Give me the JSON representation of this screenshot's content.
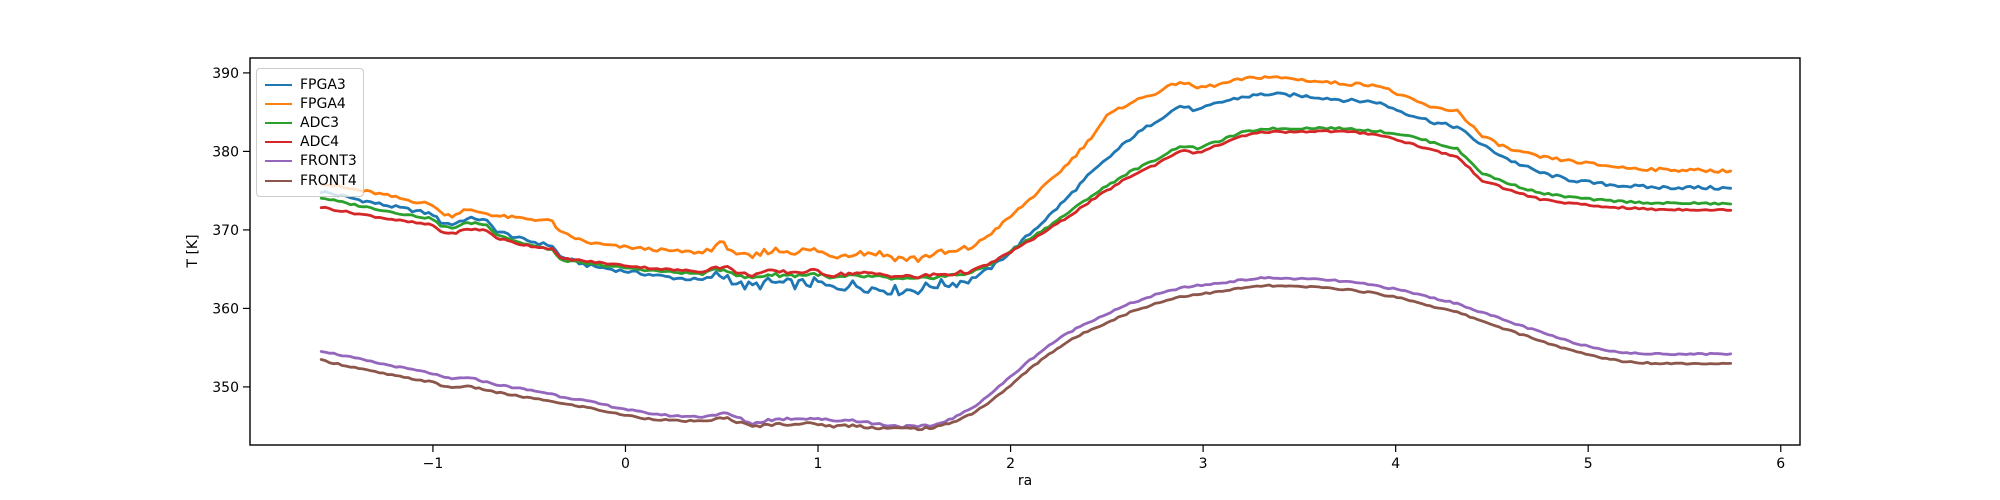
{
  "chart_data": {
    "type": "line",
    "title": "",
    "xlabel": "ra",
    "ylabel": "T [K]",
    "xlim": [
      -1.95,
      6.1
    ],
    "ylim": [
      342.6,
      391.9
    ],
    "xticks": [
      -1,
      0,
      1,
      2,
      3,
      4,
      5,
      6
    ],
    "yticks": [
      350,
      360,
      370,
      380,
      390
    ],
    "grid": false,
    "legend_position": "upper left",
    "x": [
      -1.58,
      -1.45,
      -1.3,
      -1.15,
      -1.0,
      -0.96,
      -0.9,
      -0.84,
      -0.78,
      -0.72,
      -0.67,
      -0.55,
      -0.45,
      -0.38,
      -0.34,
      -0.2,
      -0.05,
      0.1,
      0.25,
      0.4,
      0.47,
      0.53,
      0.6,
      0.66,
      0.74,
      0.88,
      1.0,
      1.06,
      1.18,
      1.3,
      1.42,
      1.52,
      1.6,
      1.7,
      1.8,
      1.9,
      2.0,
      2.1,
      2.2,
      2.3,
      2.4,
      2.5,
      2.62,
      2.75,
      2.88,
      2.97,
      3.08,
      3.2,
      3.32,
      3.45,
      3.6,
      3.75,
      3.9,
      4.05,
      4.2,
      4.32,
      4.45,
      4.6,
      4.75,
      4.9,
      5.05,
      5.2,
      5.35,
      5.55,
      5.74
    ],
    "series": [
      {
        "name": "FPGA3",
        "color": "#1f77b4",
        "noise": 0.22,
        "noise_boost": [
          0.45,
          1.78,
          3.0
        ],
        "values": [
          374.9,
          374.2,
          373.4,
          372.7,
          372.0,
          371.0,
          370.7,
          371.3,
          371.5,
          371.1,
          369.9,
          368.9,
          368.3,
          368.0,
          366.6,
          365.5,
          364.9,
          364.4,
          363.9,
          363.6,
          364.2,
          364.1,
          362.9,
          362.8,
          363.3,
          363.1,
          363.3,
          362.6,
          363.0,
          362.5,
          362.3,
          362.4,
          363.0,
          363.2,
          363.8,
          365.2,
          367.2,
          369.5,
          371.8,
          374.2,
          376.8,
          379.0,
          381.6,
          383.8,
          385.8,
          385.2,
          386.2,
          386.9,
          387.3,
          387.2,
          386.9,
          386.5,
          386.3,
          384.9,
          383.7,
          383.1,
          380.8,
          378.8,
          377.3,
          376.4,
          375.9,
          375.6,
          375.4,
          375.4,
          375.3
        ]
      },
      {
        "name": "FPGA4",
        "color": "#ff7f0e",
        "noise": 0.2,
        "noise_boost": [
          0.4,
          1.78,
          2.5
        ],
        "values": [
          376.0,
          375.3,
          374.7,
          373.9,
          373.2,
          372.2,
          371.8,
          372.5,
          372.4,
          372.1,
          371.8,
          371.5,
          371.3,
          371.1,
          369.7,
          368.4,
          367.9,
          367.6,
          367.3,
          367.1,
          368.1,
          368.0,
          366.6,
          366.4,
          367.4,
          367.3,
          367.4,
          366.6,
          367.1,
          367.1,
          366.4,
          366.3,
          367.0,
          367.1,
          367.8,
          369.6,
          371.7,
          373.9,
          376.1,
          378.5,
          381.2,
          384.5,
          386.2,
          387.4,
          388.9,
          388.1,
          388.5,
          389.2,
          389.5,
          389.3,
          388.9,
          388.6,
          388.5,
          386.9,
          385.5,
          385.2,
          381.9,
          380.2,
          379.3,
          378.8,
          378.3,
          377.9,
          377.7,
          377.6,
          377.5
        ]
      },
      {
        "name": "ADC3",
        "color": "#2ca02c",
        "noise": 0.12,
        "noise_boost": [
          0.45,
          1.78,
          2.0
        ],
        "values": [
          374.1,
          373.4,
          372.7,
          372.0,
          371.4,
          370.5,
          370.2,
          370.8,
          370.9,
          370.6,
          369.5,
          368.4,
          367.8,
          367.5,
          366.2,
          365.7,
          365.3,
          364.9,
          364.6,
          364.4,
          365.0,
          364.9,
          364.0,
          363.9,
          364.3,
          364.2,
          364.4,
          363.8,
          364.1,
          364.0,
          363.7,
          363.7,
          364.0,
          364.2,
          364.6,
          365.7,
          367.3,
          368.9,
          370.5,
          372.2,
          374.0,
          375.6,
          377.4,
          378.9,
          380.7,
          380.4,
          381.3,
          382.4,
          382.9,
          382.9,
          383.0,
          382.9,
          382.6,
          382.1,
          381.1,
          380.3,
          377.2,
          375.8,
          374.7,
          374.2,
          373.8,
          373.6,
          373.4,
          373.4,
          373.3
        ]
      },
      {
        "name": "ADC4",
        "color": "#d62728",
        "noise": 0.12,
        "noise_boost": [
          0.45,
          1.78,
          2.0
        ],
        "values": [
          372.9,
          372.3,
          371.7,
          371.1,
          370.6,
          369.8,
          369.5,
          370.0,
          370.1,
          369.9,
          369.0,
          368.2,
          367.8,
          367.6,
          366.4,
          366.0,
          365.6,
          365.2,
          364.9,
          364.7,
          365.3,
          365.2,
          364.4,
          364.3,
          364.7,
          364.6,
          364.8,
          364.2,
          364.5,
          364.4,
          364.1,
          364.0,
          364.3,
          364.4,
          364.8,
          365.8,
          367.2,
          368.6,
          370.1,
          371.7,
          373.4,
          375.0,
          376.8,
          378.3,
          380.1,
          379.8,
          380.8,
          381.9,
          382.5,
          382.5,
          382.6,
          382.5,
          382.2,
          381.2,
          380.1,
          379.3,
          376.3,
          375.0,
          373.9,
          373.4,
          373.0,
          372.8,
          372.6,
          372.6,
          372.5
        ]
      },
      {
        "name": "FRONT3",
        "color": "#9467bd",
        "noise": 0.1,
        "noise_boost": [
          0.45,
          1.6,
          1.8
        ],
        "values": [
          354.6,
          353.9,
          353.1,
          352.4,
          351.7,
          351.3,
          351.0,
          351.2,
          351.0,
          350.6,
          350.3,
          349.8,
          349.4,
          349.1,
          348.8,
          348.2,
          347.4,
          346.7,
          346.3,
          346.2,
          346.5,
          346.6,
          345.9,
          345.3,
          345.8,
          346.0,
          346.0,
          345.7,
          345.8,
          345.3,
          345.0,
          344.9,
          345.1,
          346.0,
          347.3,
          349.2,
          351.3,
          353.4,
          355.3,
          356.9,
          358.2,
          359.3,
          360.6,
          361.7,
          362.6,
          362.9,
          363.2,
          363.6,
          363.9,
          363.8,
          363.7,
          363.4,
          362.9,
          362.2,
          361.3,
          360.6,
          359.5,
          358.2,
          357.0,
          355.8,
          354.9,
          354.3,
          354.2,
          354.2,
          354.2
        ]
      },
      {
        "name": "FRONT4",
        "color": "#8c564b",
        "noise": 0.1,
        "noise_boost": [
          0.45,
          1.6,
          1.8
        ],
        "values": [
          353.4,
          352.7,
          351.9,
          351.2,
          350.6,
          350.2,
          349.9,
          350.1,
          349.9,
          349.6,
          349.3,
          348.8,
          348.4,
          348.2,
          347.9,
          347.4,
          346.6,
          346.0,
          345.7,
          345.6,
          345.9,
          346.0,
          345.4,
          344.9,
          345.2,
          345.3,
          345.3,
          345.0,
          345.1,
          344.8,
          344.7,
          344.7,
          344.8,
          345.5,
          346.6,
          348.2,
          350.2,
          352.3,
          354.2,
          355.8,
          357.1,
          358.2,
          359.5,
          360.6,
          361.5,
          361.8,
          362.1,
          362.6,
          362.9,
          362.8,
          362.7,
          362.4,
          361.9,
          361.2,
          360.2,
          359.5,
          358.4,
          357.1,
          355.9,
          354.7,
          353.8,
          353.2,
          353.0,
          353.0,
          353.0
        ]
      }
    ]
  }
}
